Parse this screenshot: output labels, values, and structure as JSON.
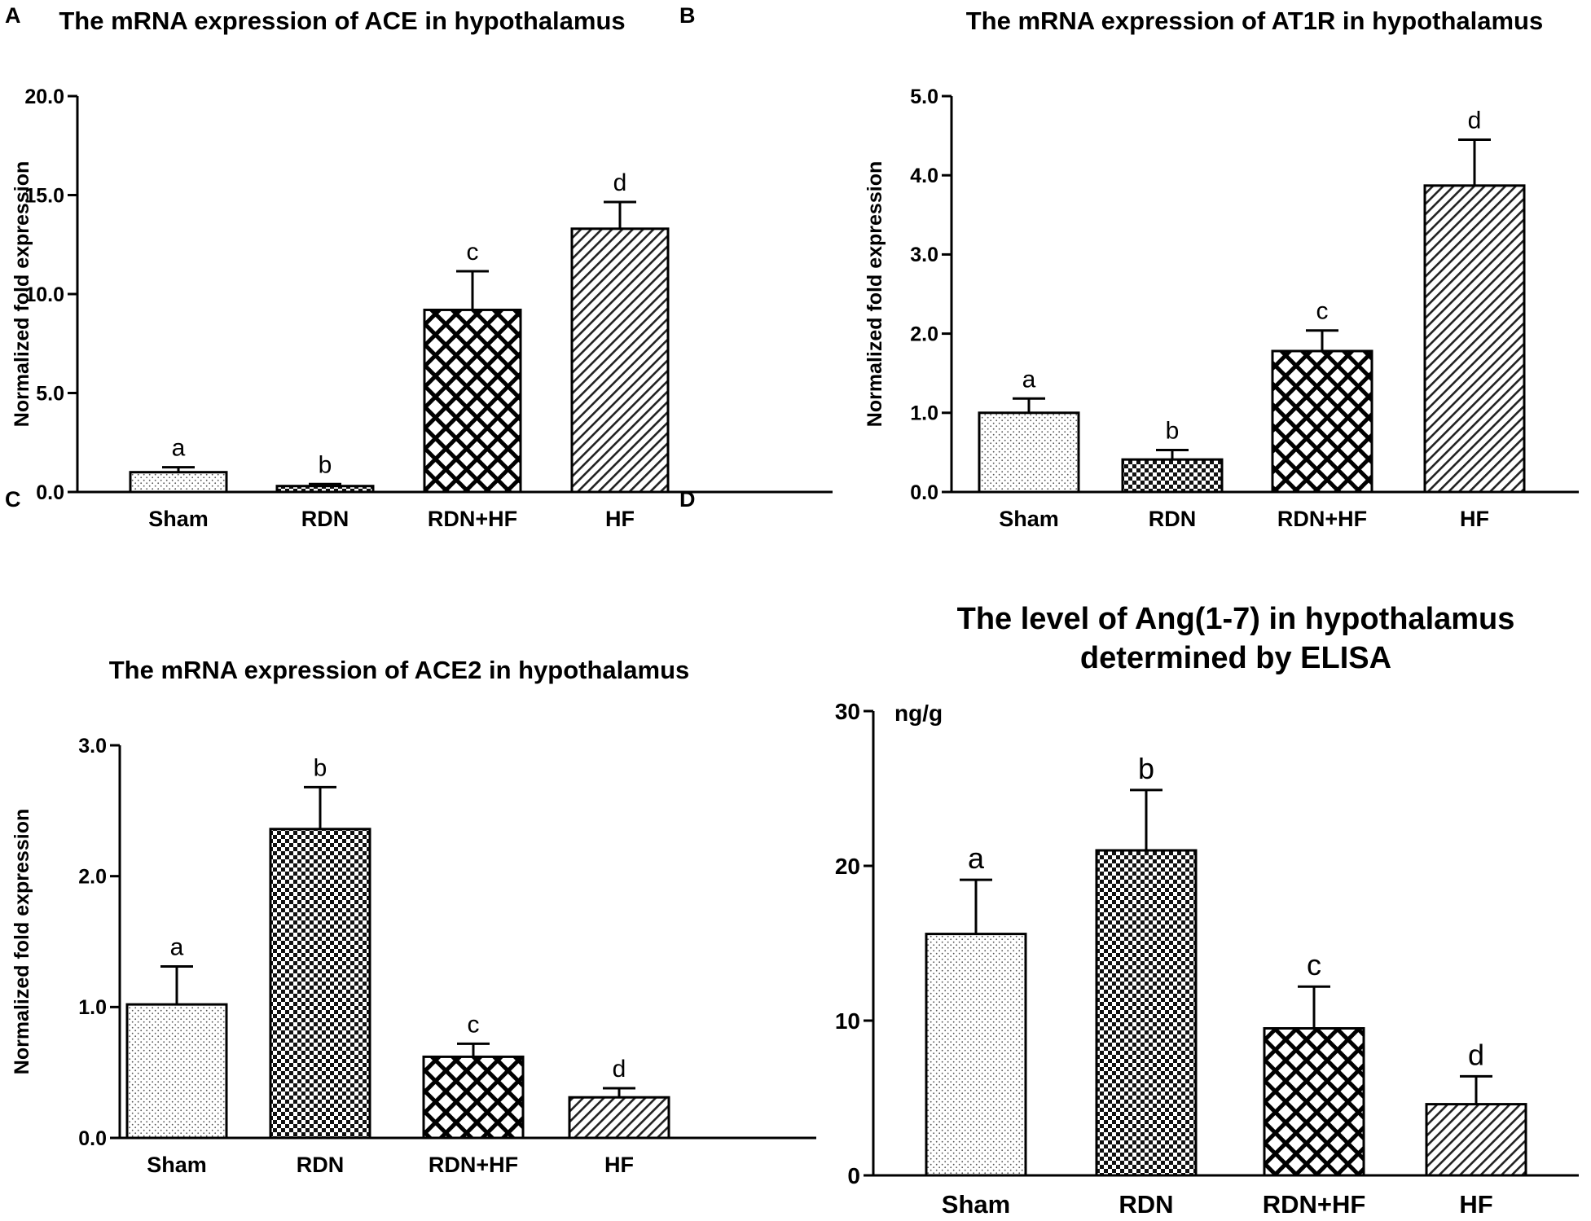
{
  "chart_data": [
    {
      "panel": "A",
      "type": "bar",
      "title": "The mRNA expression of ACE in hypothalamus",
      "ylabel": "Normalized fold expression",
      "ylim": [
        0,
        20
      ],
      "yticks": [
        "0.0",
        "5.0",
        "10.0",
        "15.0",
        "20.0"
      ],
      "categories": [
        "Sham",
        "RDN",
        "RDN+HF",
        "HF"
      ],
      "values": [
        1.0,
        0.3,
        9.2,
        13.3
      ],
      "errors": [
        0.25,
        0.1,
        1.95,
        1.35
      ],
      "labels": [
        "a",
        "b",
        "c",
        "d"
      ],
      "patterns": [
        "dots",
        "checker",
        "diamond",
        "diagonal"
      ]
    },
    {
      "panel": "B",
      "type": "bar",
      "title": "The mRNA expression of AT1R in hypothalamus",
      "ylabel": "Normalized fold expression",
      "ylim": [
        0,
        5
      ],
      "yticks": [
        "0.0",
        "1.0",
        "2.0",
        "3.0",
        "4.0",
        "5.0"
      ],
      "categories": [
        "Sham",
        "RDN",
        "RDN+HF",
        "HF"
      ],
      "values": [
        1.0,
        0.41,
        1.78,
        3.87
      ],
      "errors": [
        0.18,
        0.12,
        0.26,
        0.58
      ],
      "labels": [
        "a",
        "b",
        "c",
        "d"
      ],
      "patterns": [
        "dots",
        "checker",
        "diamond",
        "diagonal"
      ]
    },
    {
      "panel": "C",
      "type": "bar",
      "title": "The mRNA expression of ACE2 in hypothalamus",
      "ylabel": "Normalized fold expression",
      "ylim": [
        0,
        3
      ],
      "yticks": [
        "0.0",
        "1.0",
        "2.0",
        "3.0"
      ],
      "categories": [
        "Sham",
        "RDN",
        "RDN+HF",
        "HF"
      ],
      "values": [
        1.02,
        2.36,
        0.62,
        0.31
      ],
      "errors": [
        0.29,
        0.32,
        0.1,
        0.07
      ],
      "labels": [
        "a",
        "b",
        "c",
        "d"
      ],
      "patterns": [
        "dots",
        "checker",
        "diamond",
        "diagonal"
      ]
    },
    {
      "panel": "D",
      "type": "bar",
      "title": [
        "The level of Ang(1-7) in hypothalamus",
        "determined by ELISA"
      ],
      "unit": "ng/g",
      "ylim": [
        0,
        30
      ],
      "yticks": [
        "0",
        "10",
        "20",
        "30"
      ],
      "categories": [
        "Sham",
        "RDN",
        "RDN+HF",
        "HF"
      ],
      "values": [
        15.6,
        21.0,
        9.5,
        4.6
      ],
      "errors": [
        3.5,
        3.9,
        2.7,
        1.8
      ],
      "labels": [
        "a",
        "b",
        "c",
        "d"
      ],
      "patterns": [
        "dots",
        "checker",
        "diamond",
        "diagonal"
      ]
    }
  ]
}
